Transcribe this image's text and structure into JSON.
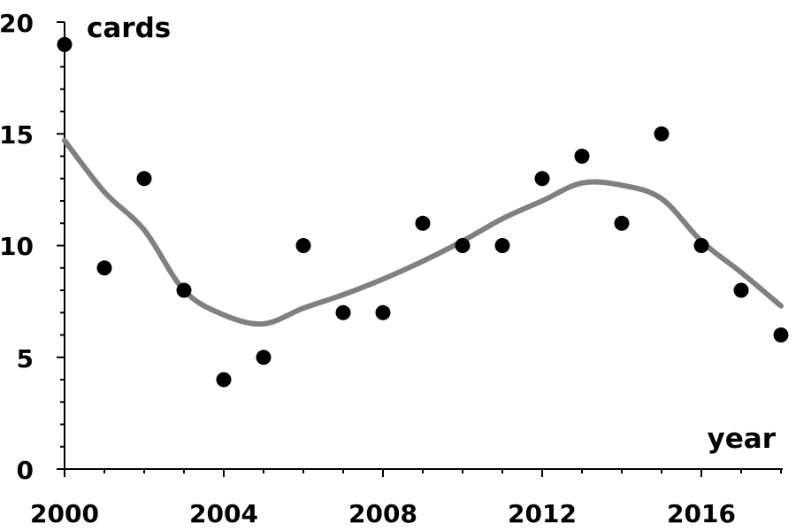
{
  "chart_data": {
    "type": "scatter",
    "xlabel": "year",
    "ylabel": "cards",
    "xlim": [
      2000,
      2018
    ],
    "ylim": [
      0,
      20
    ],
    "x_ticks": [
      "2000",
      "2004",
      "2008",
      "2012",
      "2016"
    ],
    "y_ticks": [
      "0",
      "5",
      "10",
      "15",
      "20"
    ],
    "grid": false,
    "legend": "none",
    "colors": {
      "points": "#000000",
      "trend": "#808080",
      "axis": "#000000"
    },
    "points": [
      {
        "x": 2000,
        "y": 19
      },
      {
        "x": 2001,
        "y": 9
      },
      {
        "x": 2002,
        "y": 13
      },
      {
        "x": 2003,
        "y": 8
      },
      {
        "x": 2004,
        "y": 4
      },
      {
        "x": 2005,
        "y": 5
      },
      {
        "x": 2006,
        "y": 10
      },
      {
        "x": 2007,
        "y": 7
      },
      {
        "x": 2008,
        "y": 7
      },
      {
        "x": 2009,
        "y": 11
      },
      {
        "x": 2010,
        "y": 10
      },
      {
        "x": 2011,
        "y": 10
      },
      {
        "x": 2012,
        "y": 13
      },
      {
        "x": 2013,
        "y": 14
      },
      {
        "x": 2014,
        "y": 11
      },
      {
        "x": 2015,
        "y": 15
      },
      {
        "x": 2016,
        "y": 10
      },
      {
        "x": 2017,
        "y": 8
      },
      {
        "x": 2018,
        "y": 6
      }
    ],
    "trend": [
      {
        "x": 2000,
        "y": 14.7
      },
      {
        "x": 2001,
        "y": 12.4
      },
      {
        "x": 2002,
        "y": 10.7
      },
      {
        "x": 2003,
        "y": 8.0
      },
      {
        "x": 2004,
        "y": 6.9
      },
      {
        "x": 2005,
        "y": 6.5
      },
      {
        "x": 2006,
        "y": 7.2
      },
      {
        "x": 2007,
        "y": 7.8
      },
      {
        "x": 2008,
        "y": 8.5
      },
      {
        "x": 2009,
        "y": 9.3
      },
      {
        "x": 2010,
        "y": 10.2
      },
      {
        "x": 2011,
        "y": 11.2
      },
      {
        "x": 2012,
        "y": 12.0
      },
      {
        "x": 2013,
        "y": 12.8
      },
      {
        "x": 2014,
        "y": 12.7
      },
      {
        "x": 2015,
        "y": 12.1
      },
      {
        "x": 2016,
        "y": 10.2
      },
      {
        "x": 2017,
        "y": 8.8
      },
      {
        "x": 2018,
        "y": 7.3
      }
    ]
  }
}
